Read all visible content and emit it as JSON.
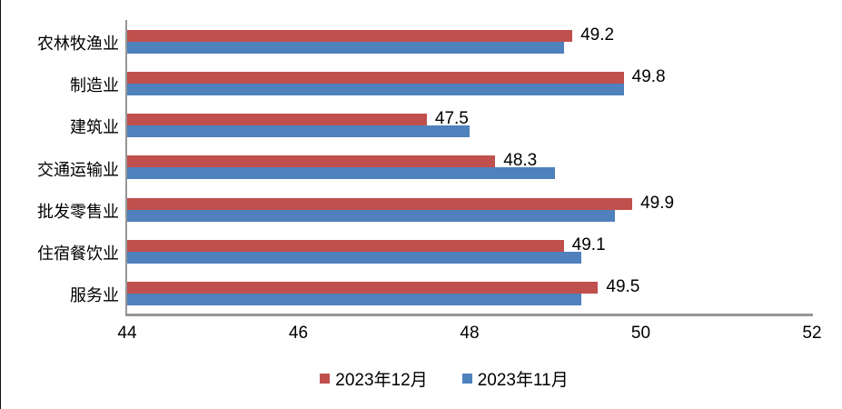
{
  "chart_data": {
    "type": "bar",
    "orientation": "horizontal",
    "title": "",
    "categories": [
      "农林牧渔业",
      "制造业",
      "建筑业",
      "交通运输业",
      "批发零售业",
      "住宿餐饮业",
      "服务业"
    ],
    "series": [
      {
        "name": "2023年12月",
        "color": "#C0504D",
        "values": [
          49.2,
          49.8,
          47.5,
          48.3,
          49.9,
          49.1,
          49.5
        ],
        "labels_shown": true
      },
      {
        "name": "2023年11月",
        "color": "#4F81BD",
        "values": [
          49.1,
          49.8,
          48.0,
          49.0,
          49.7,
          49.3,
          49.3
        ],
        "labels_shown": false
      }
    ],
    "xlim": [
      44,
      52
    ],
    "x_ticks": [
      44,
      46,
      48,
      50,
      52
    ],
    "grid": false,
    "legend_position": "bottom",
    "axis_color": "#969696",
    "text_color": "#000000",
    "background_color": "#FFFFFF"
  }
}
